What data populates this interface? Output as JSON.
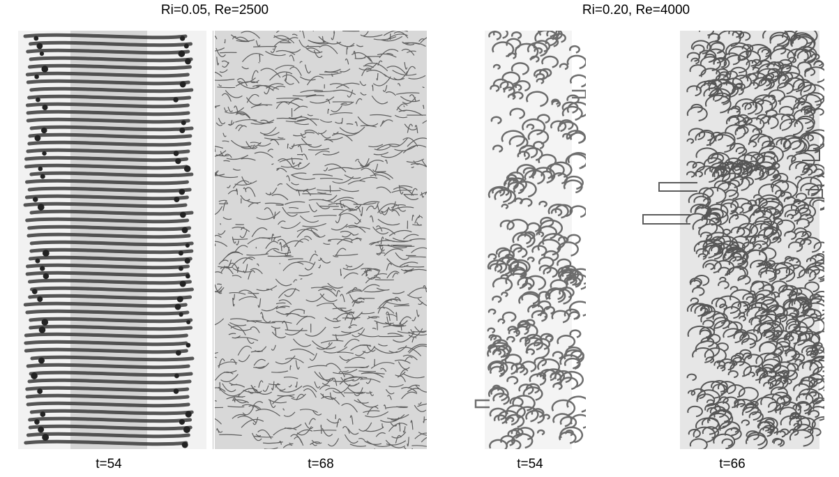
{
  "figure": {
    "groups": [
      {
        "title": "Ri=0.05, Re=2500"
      },
      {
        "title": "Ri=0.20, Re=4000"
      }
    ],
    "panels": [
      {
        "time_label": "t=54",
        "shade": "#3a3a3a"
      },
      {
        "time_label": "t=68",
        "shade": "#2a2a2a"
      },
      {
        "time_label": "t=54",
        "shade": "#4a4a4a"
      },
      {
        "time_label": "t=66",
        "shade": "#333333"
      }
    ]
  }
}
